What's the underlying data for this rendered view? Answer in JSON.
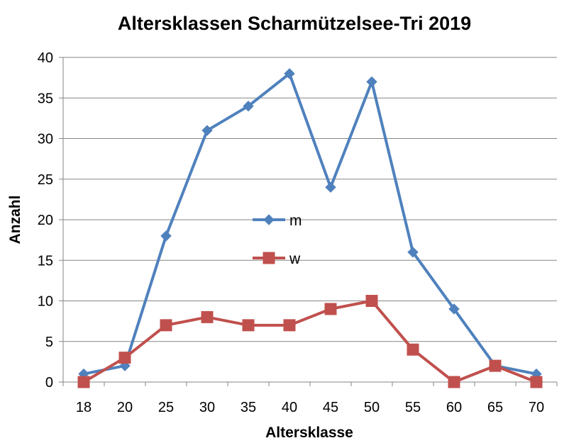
{
  "chart_data": {
    "type": "line",
    "title": "Altersklassen Scharmützelsee-Tri 2019",
    "xlabel": "Altersklasse",
    "ylabel": "Anzahl",
    "categories": [
      "18",
      "20",
      "25",
      "30",
      "35",
      "40",
      "45",
      "50",
      "55",
      "60",
      "65",
      "70"
    ],
    "ylim": [
      0,
      40
    ],
    "yticks": [
      0,
      5,
      10,
      15,
      20,
      25,
      30,
      35,
      40
    ],
    "grid": true,
    "legend_position": "center",
    "series": [
      {
        "name": "m",
        "color": "#4F81BD",
        "marker": "diamond",
        "values": [
          1,
          2,
          18,
          31,
          34,
          38,
          24,
          37,
          16,
          9,
          2,
          1
        ]
      },
      {
        "name": "w",
        "color": "#C0504D",
        "marker": "square",
        "values": [
          0,
          3,
          7,
          8,
          7,
          7,
          9,
          10,
          4,
          0,
          2,
          0
        ]
      }
    ]
  }
}
